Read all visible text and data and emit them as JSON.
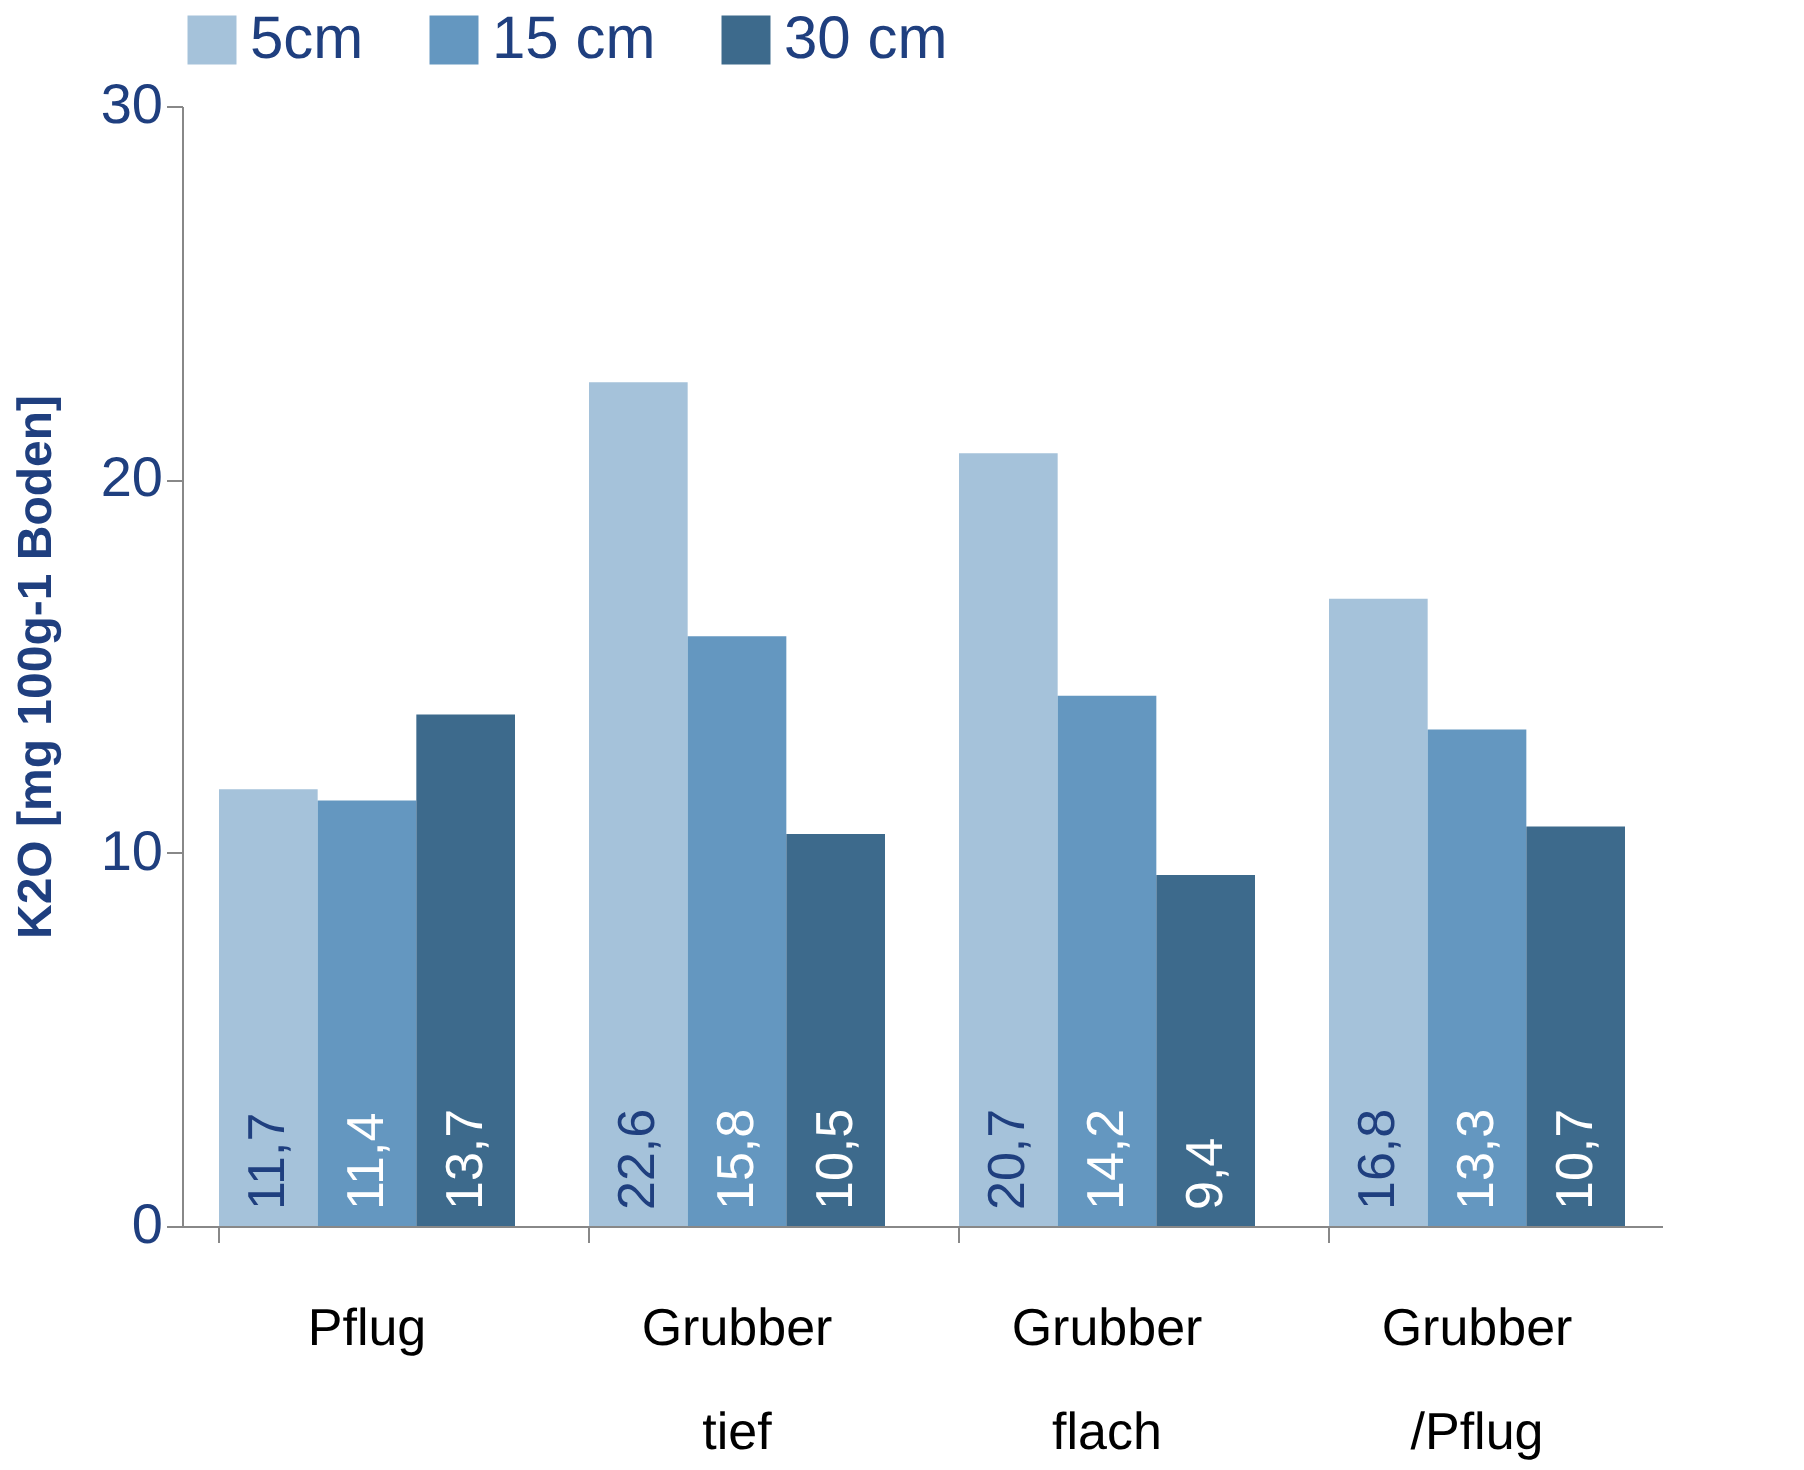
{
  "chart_data": {
    "type": "bar",
    "ylabel": "K2O [mg 100g-1 Boden]",
    "categories": [
      "Pflug",
      "Grubber tief",
      "Grubber flach",
      "Grubber /Pflug"
    ],
    "series": [
      {
        "name": "5cm",
        "color": "#a5c2da",
        "values": [
          11.7,
          22.6,
          20.7,
          16.8
        ],
        "value_labels": [
          "11,7",
          "22,6",
          "20,7",
          "16,8"
        ]
      },
      {
        "name": "15 cm",
        "color": "#6497c0",
        "values": [
          11.4,
          15.8,
          14.2,
          13.3
        ],
        "value_labels": [
          "11,4",
          "15,8",
          "14,2",
          "13,3"
        ]
      },
      {
        "name": "30 cm",
        "color": "#3d6a8c",
        "values": [
          13.7,
          10.5,
          9.4,
          10.7
        ],
        "value_labels": [
          "13,7",
          "10,5",
          "9,4",
          "10,7"
        ]
      }
    ],
    "ylim": [
      0,
      30
    ],
    "yticks": [
      0,
      10,
      20,
      30
    ],
    "grid": false,
    "legend": "top"
  }
}
